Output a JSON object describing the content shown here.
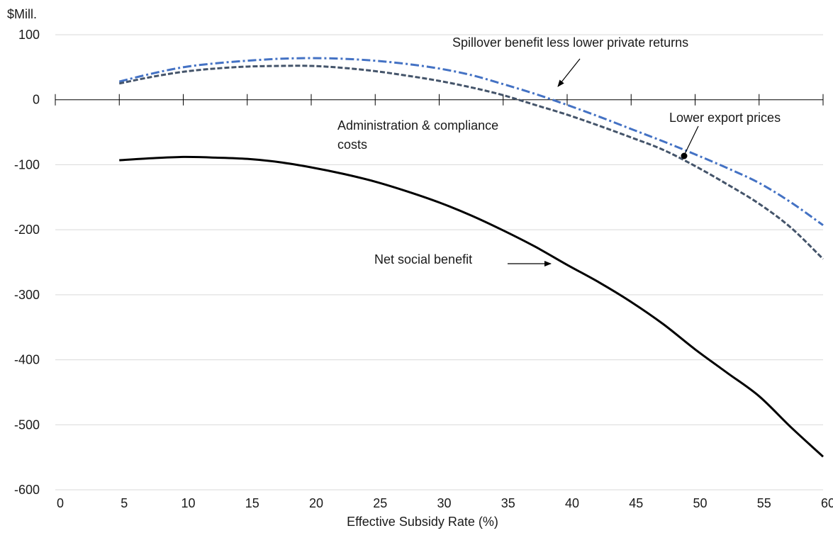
{
  "chart_data": {
    "type": "line",
    "title": "",
    "xlabel": "Effective Subsidy Rate (%)",
    "ylabel": "$Mill.",
    "xlim": [
      0,
      60
    ],
    "ylim": [
      -600,
      100
    ],
    "xticks": [
      0,
      5,
      10,
      15,
      20,
      25,
      30,
      35,
      40,
      45,
      50,
      55,
      60
    ],
    "yticks": [
      100,
      0,
      -100,
      -200,
      -300,
      -400,
      -500,
      -600
    ],
    "grid": "horizontal",
    "legend": "none",
    "x": [
      5,
      7.5,
      10,
      12.5,
      15,
      17.5,
      20,
      22.5,
      25,
      27.5,
      30,
      32.5,
      35,
      37.5,
      40,
      42.5,
      45,
      47.5,
      50,
      52.5,
      55,
      57.5,
      60
    ],
    "series": [
      {
        "name": "Spillover benefit less lower private returns",
        "color": "#4472C4",
        "dash": "dashdot",
        "values": [
          28,
          40,
          50,
          56,
          60,
          63,
          64,
          63,
          60,
          55,
          48,
          38,
          24,
          9,
          -8,
          -26,
          -45,
          -64,
          -84,
          -105,
          -128,
          -158,
          -193
        ]
      },
      {
        "name": "Lower export prices",
        "color": "#44546A",
        "dash": "dash",
        "values": [
          25,
          35,
          43,
          48,
          51,
          52,
          52,
          49,
          44,
          37,
          29,
          19,
          7,
          -8,
          -23,
          -40,
          -58,
          -77,
          -102,
          -130,
          -160,
          -197,
          -245
        ]
      },
      {
        "name": "Net social benefit",
        "color": "#000000",
        "dash": "solid",
        "values": [
          -93,
          -90,
          -88,
          -89,
          -91,
          -96,
          -104,
          -114,
          -126,
          -141,
          -158,
          -178,
          -201,
          -226,
          -254,
          -281,
          -311,
          -345,
          -384,
          -420,
          -456,
          -504,
          -549
        ]
      }
    ],
    "annotations": [
      {
        "text": "Spillover benefit less lower private returns",
        "lines": [
          "Spillover benefit less lower private returns"
        ]
      },
      {
        "text": "Administration & compliance costs",
        "lines": [
          "Administration & compliance",
          "costs"
        ]
      },
      {
        "text": "Lower export prices",
        "lines": [
          "Lower export prices"
        ]
      },
      {
        "text": "Net social benefit",
        "lines": [
          "Net social benefit"
        ]
      }
    ]
  }
}
